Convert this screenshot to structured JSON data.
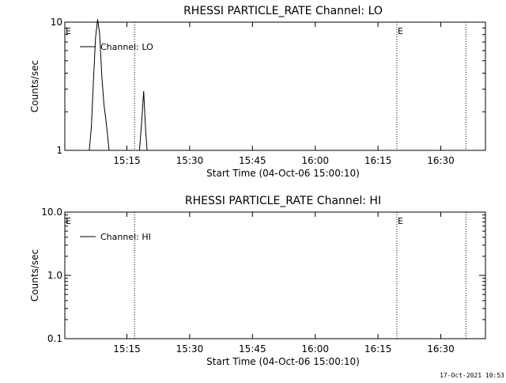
{
  "chart_data": [
    {
      "type": "line",
      "title": "RHESSI PARTICLE_RATE Channel: LO",
      "xlabel": "Start Time (04-Oct-06 15:00:10)",
      "ylabel": "Counts/sec",
      "yscale": "log",
      "ylim": [
        1,
        10
      ],
      "xlim": [
        "15:00:10",
        "16:40:40"
      ],
      "xticks": [
        "15:15",
        "15:30",
        "15:45",
        "16:00",
        "16:15",
        "16:30"
      ],
      "yticks": [
        "1",
        "10"
      ],
      "legend": "top-left",
      "series": [
        {
          "name": "Channel: LO",
          "x": [
            "15:06:00",
            "15:06:30",
            "15:07:00",
            "15:07:30",
            "15:08:00",
            "15:08:30",
            "15:09:00",
            "15:09:30",
            "15:10:00",
            "15:10:30",
            "15:10:45",
            "15:18:00",
            "15:18:30",
            "15:19:00",
            "15:19:30",
            "15:19:50"
          ],
          "y": [
            1.0,
            1.5,
            3.5,
            7.5,
            10.5,
            8.0,
            3.8,
            2.3,
            1.7,
            1.2,
            1.0,
            1.0,
            1.6,
            2.9,
            1.4,
            1.0
          ]
        }
      ],
      "markers": [
        {
          "label": "E",
          "time": "15:00:10"
        },
        {
          "label": "",
          "time": "15:16:50"
        },
        {
          "label": "E",
          "time": "16:19:30"
        },
        {
          "label": "",
          "time": "16:36:00"
        }
      ]
    },
    {
      "type": "line",
      "title": "RHESSI PARTICLE_RATE Channel: HI",
      "xlabel": "Start Time (04-Oct-06 15:00:10)",
      "ylabel": "Counts/sec",
      "yscale": "log",
      "ylim": [
        0.1,
        10
      ],
      "xlim": [
        "15:00:10",
        "16:40:40"
      ],
      "xticks": [
        "15:15",
        "15:30",
        "15:45",
        "16:00",
        "16:15",
        "16:30"
      ],
      "yticks": [
        "0.1",
        "1.0",
        "10.0"
      ],
      "legend": "top-left",
      "series": [
        {
          "name": "Channel: HI",
          "x": [],
          "y": []
        }
      ],
      "markers": [
        {
          "label": "E",
          "time": "15:00:10"
        },
        {
          "label": "",
          "time": "15:16:50"
        },
        {
          "label": "E",
          "time": "16:19:30"
        },
        {
          "label": "",
          "time": "16:36:00"
        }
      ]
    }
  ],
  "footer": {
    "timestamp": "17-Oct-2021 10:53"
  }
}
